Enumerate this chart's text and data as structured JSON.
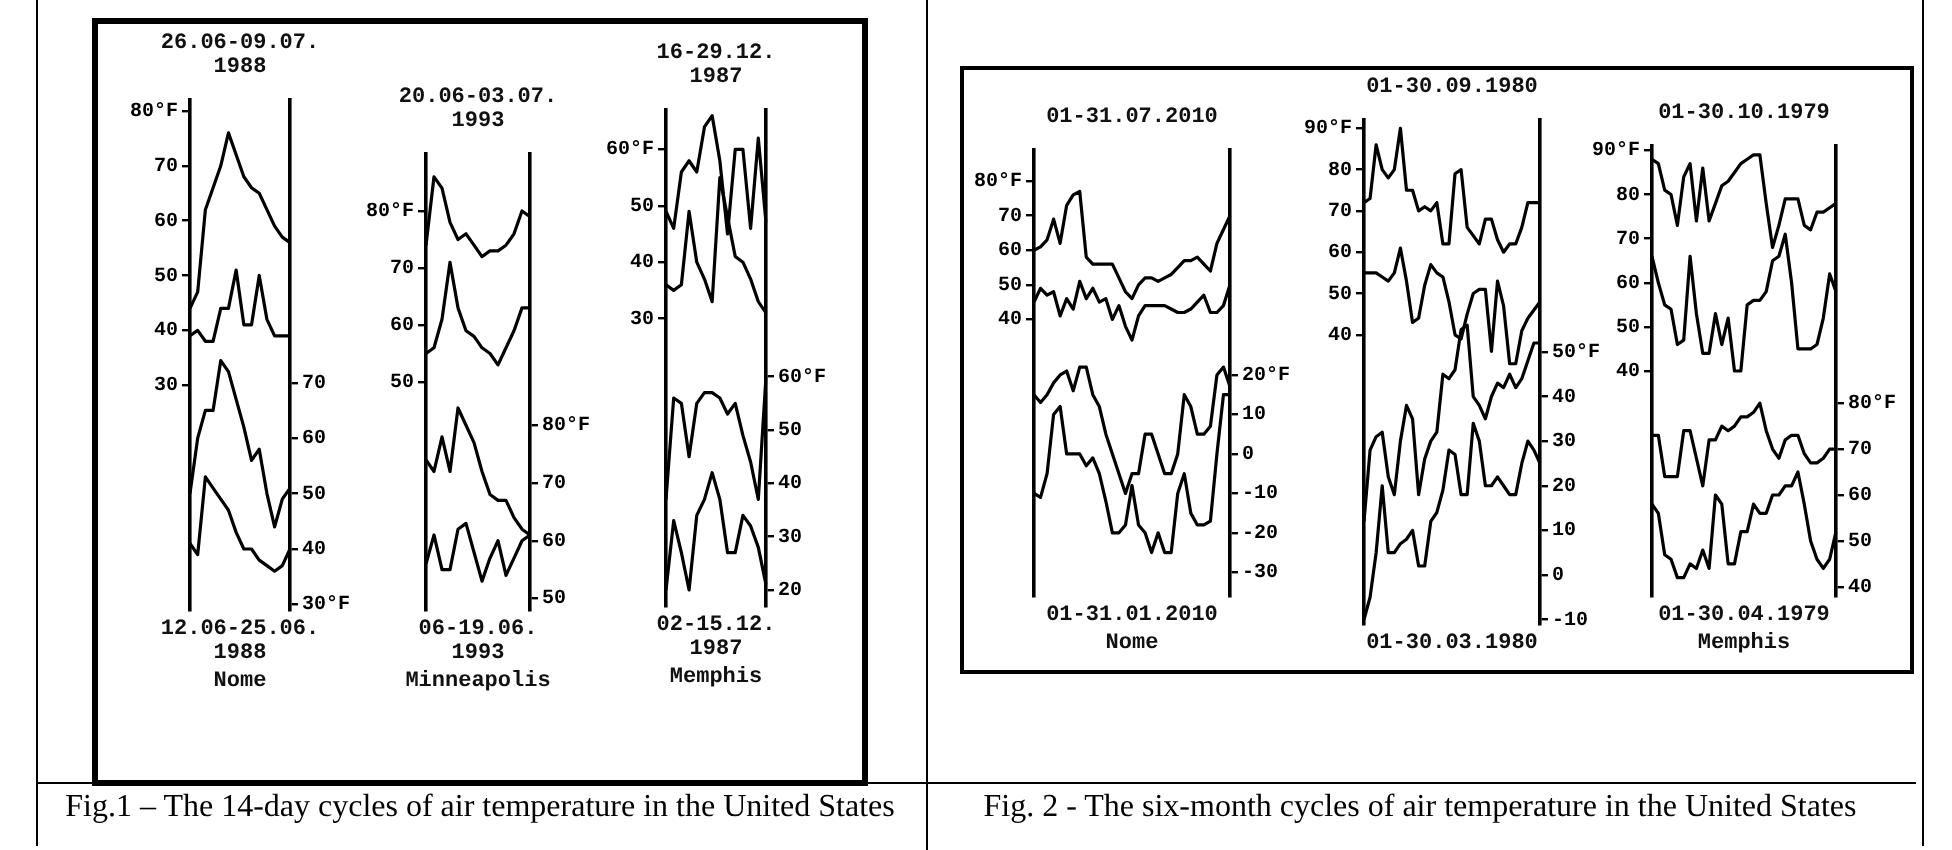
{
  "chart_data": [
    {
      "type": "line",
      "title": "26.06-09.07.\n1988",
      "xlabel": "12.06-25.06.\n1988",
      "annotations": [
        "Nome"
      ],
      "marker": "none",
      "grid": false,
      "legend": false,
      "categories": [
        null,
        null,
        null,
        null,
        null,
        null,
        null,
        null,
        null,
        null,
        null,
        null,
        null,
        null
      ],
      "ylim": [
        -11,
        82
      ],
      "yticks": [
        30,
        40,
        50,
        60,
        70,
        {
          "value": 80,
          "label": "80°F"
        }
      ],
      "y2lim": [
        29,
        121
      ],
      "y2ticks": [
        {
          "value": 30,
          "label": "30°F"
        },
        40,
        50,
        60,
        70
      ],
      "series": [
        {
          "color": "#000000",
          "values": [
            44,
            47,
            62,
            66,
            70,
            76,
            72,
            68,
            66,
            65,
            62,
            59,
            57,
            56
          ]
        },
        {
          "color": "#000000",
          "values": [
            39,
            40,
            38,
            38,
            44,
            44,
            51,
            41,
            41,
            50,
            42,
            39,
            39,
            39
          ]
        },
        {
          "color": "#000000",
          "axis": "y2",
          "values": [
            50,
            60,
            65,
            65,
            74,
            72,
            67,
            62,
            56,
            58,
            50,
            44,
            49,
            51
          ]
        },
        {
          "color": "#000000",
          "axis": "y2",
          "values": [
            41,
            39,
            53,
            51,
            49,
            47,
            43,
            40,
            40,
            38,
            37,
            36,
            37,
            40
          ]
        }
      ]
    },
    {
      "type": "line",
      "title": "20.06-03.07.\n1993",
      "xlabel": "06-19.06.\n1993",
      "annotations": [
        "Minneapolis"
      ],
      "marker": "none",
      "grid": false,
      "legend": false,
      "categories": [
        null,
        null,
        null,
        null,
        null,
        null,
        null,
        null,
        null,
        null,
        null,
        null,
        null,
        null
      ],
      "ylim": [
        10,
        90
      ],
      "yticks": [
        50,
        60,
        70,
        {
          "value": 80,
          "label": "80°F"
        }
      ],
      "y2lim": [
        48,
        127
      ],
      "y2ticks": [
        50,
        60,
        70,
        {
          "value": 80,
          "label": "80°F"
        }
      ],
      "series": [
        {
          "color": "#000000",
          "values": [
            74,
            86,
            84,
            78,
            75,
            76,
            74,
            72,
            73,
            73,
            74,
            76,
            80,
            79
          ]
        },
        {
          "color": "#000000",
          "values": [
            55,
            56,
            61,
            71,
            63,
            59,
            58,
            56,
            55,
            53,
            56,
            59,
            63,
            63
          ]
        },
        {
          "color": "#000000",
          "axis": "y2",
          "values": [
            74,
            72,
            78,
            72,
            83,
            80,
            77,
            72,
            68,
            67,
            67,
            64,
            62,
            61
          ]
        },
        {
          "color": "#000000",
          "axis": "y2",
          "values": [
            56,
            61,
            55,
            55,
            62,
            63,
            58,
            53,
            57,
            60,
            54,
            57,
            60,
            61
          ]
        }
      ]
    },
    {
      "type": "line",
      "title": "16-29.12.\n1987",
      "xlabel": "02-15.12.\n1987",
      "annotations": [
        "Memphis"
      ],
      "marker": "none",
      "grid": false,
      "legend": false,
      "categories": [
        null,
        null,
        null,
        null,
        null,
        null,
        null,
        null,
        null,
        null,
        null,
        null,
        null,
        null
      ],
      "ylim": [
        -21,
        67
      ],
      "yticks": [
        30,
        40,
        50,
        {
          "value": 60,
          "label": "60°F"
        }
      ],
      "y2lim": [
        17,
        110
      ],
      "y2ticks": [
        20,
        30,
        40,
        50,
        {
          "value": 60,
          "label": "60°F"
        }
      ],
      "series": [
        {
          "color": "#000000",
          "values": [
            49,
            46,
            56,
            58,
            56,
            64,
            66,
            58,
            45,
            60,
            60,
            46,
            62,
            47
          ]
        },
        {
          "color": "#000000",
          "values": [
            36,
            35,
            36,
            49,
            40,
            37,
            33,
            55,
            48,
            41,
            40,
            37,
            33,
            31
          ]
        },
        {
          "color": "#000000",
          "axis": "y2",
          "values": [
            37,
            56,
            55,
            45,
            55,
            57,
            57,
            56,
            53,
            55,
            49,
            44,
            37,
            60
          ]
        },
        {
          "color": "#000000",
          "axis": "y2",
          "values": [
            20,
            33,
            27,
            20,
            34,
            37,
            42,
            37,
            27,
            27,
            34,
            32,
            28,
            21
          ]
        }
      ]
    },
    {
      "type": "line",
      "title": "01-31.07.2010",
      "xlabel": "01-31.01.2010",
      "annotations": [
        "Nome"
      ],
      "marker": "none",
      "grid": false,
      "legend": false,
      "categories": [
        null,
        null,
        null,
        null,
        null,
        null,
        null,
        null,
        null,
        null,
        null,
        null,
        null,
        null,
        null,
        null,
        null,
        null,
        null,
        null,
        null,
        null,
        null,
        null,
        null,
        null,
        null,
        null,
        null,
        null,
        null
      ],
      "ylim": [
        -40,
        89
      ],
      "yticks": [
        40,
        50,
        60,
        70,
        {
          "value": 80,
          "label": "80°F"
        }
      ],
      "y2lim": [
        -36,
        77
      ],
      "y2ticks": [
        -30,
        -20,
        -10,
        0,
        10,
        {
          "value": 20,
          "label": "20°F"
        }
      ],
      "series": [
        {
          "color": "#000000",
          "values": [
            60,
            61,
            63,
            69,
            62,
            73,
            76,
            77,
            58,
            56,
            56,
            56,
            56,
            52,
            48,
            46,
            50,
            52,
            52,
            51,
            52,
            53,
            55,
            57,
            57,
            58,
            56,
            54,
            62,
            66,
            70
          ]
        },
        {
          "color": "#000000",
          "values": [
            45,
            49,
            47,
            48,
            41,
            46,
            43,
            51,
            46,
            49,
            45,
            46,
            40,
            44,
            38,
            34,
            41,
            44,
            44,
            44,
            44,
            43,
            42,
            42,
            43,
            45,
            47,
            42,
            42,
            44,
            50
          ]
        },
        {
          "color": "#000000",
          "axis": "y2",
          "values": [
            15,
            13,
            15,
            18,
            20,
            21,
            16,
            22,
            22,
            15,
            12,
            5,
            0,
            -5,
            -10,
            -5,
            -5,
            5,
            5,
            0,
            -5,
            -5,
            0,
            15,
            12,
            5,
            5,
            7,
            20,
            22,
            17
          ]
        },
        {
          "color": "#000000",
          "axis": "y2",
          "values": [
            -10,
            -11,
            -5,
            10,
            12,
            0,
            0,
            0,
            -3,
            -1,
            -5,
            -12,
            -20,
            -20,
            -18,
            -8,
            -18,
            -20,
            -25,
            -20,
            -25,
            -25,
            -10,
            -5,
            -15,
            -18,
            -18,
            -17,
            0,
            15,
            15
          ]
        }
      ]
    },
    {
      "type": "line",
      "title": "01-30.09.1980",
      "xlabel": "01-30.03.1980",
      "marker": "none",
      "grid": false,
      "legend": false,
      "categories": [
        null,
        null,
        null,
        null,
        null,
        null,
        null,
        null,
        null,
        null,
        null,
        null,
        null,
        null,
        null,
        null,
        null,
        null,
        null,
        null,
        null,
        null,
        null,
        null,
        null,
        null,
        null,
        null,
        null,
        null
      ],
      "ylim": [
        -30,
        92
      ],
      "yticks": [
        40,
        50,
        60,
        70,
        80,
        {
          "value": 90,
          "label": "90°F"
        }
      ],
      "y2lim": [
        -11,
        102
      ],
      "y2ticks": [
        -10,
        0,
        10,
        20,
        30,
        40,
        {
          "value": 50,
          "label": "50°F"
        }
      ],
      "series": [
        {
          "color": "#000000",
          "values": [
            72,
            73,
            86,
            80,
            78,
            80,
            90,
            75,
            75,
            70,
            71,
            70,
            72,
            62,
            62,
            79,
            80,
            66,
            64,
            62,
            68,
            68,
            63,
            60,
            62,
            62,
            66,
            72,
            72,
            72
          ]
        },
        {
          "color": "#000000",
          "values": [
            55,
            55,
            55,
            54,
            53,
            55,
            61,
            53,
            43,
            44,
            52,
            57,
            55,
            54,
            48,
            40,
            39,
            45,
            50,
            51,
            51,
            36,
            53,
            47,
            33,
            33,
            41,
            44,
            46,
            48
          ]
        },
        {
          "color": "#000000",
          "axis": "y2",
          "values": [
            12,
            28,
            31,
            32,
            22,
            18,
            30,
            38,
            35,
            18,
            26,
            30,
            32,
            45,
            44,
            46,
            55,
            56,
            40,
            38,
            35,
            40,
            43,
            42,
            45,
            42,
            44,
            48,
            52,
            52
          ]
        },
        {
          "color": "#000000",
          "axis": "y2",
          "values": [
            -10,
            -5,
            5,
            20,
            5,
            5,
            7,
            8,
            10,
            2,
            2,
            12,
            14,
            19,
            28,
            27,
            18,
            18,
            34,
            30,
            20,
            20,
            22,
            20,
            18,
            18,
            25,
            30,
            28,
            25
          ]
        }
      ]
    },
    {
      "type": "line",
      "title": "01-30.10.1979",
      "xlabel": "01-30.04.1979",
      "annotations": [
        "Memphis"
      ],
      "marker": "none",
      "grid": false,
      "legend": false,
      "categories": [
        null,
        null,
        null,
        null,
        null,
        null,
        null,
        null,
        null,
        null,
        null,
        null,
        null,
        null,
        null,
        null,
        null,
        null,
        null,
        null,
        null,
        null,
        null,
        null,
        null,
        null,
        null,
        null,
        null,
        null
      ],
      "ylim": [
        -11,
        91
      ],
      "yticks": [
        40,
        50,
        60,
        70,
        80,
        {
          "value": 90,
          "label": "90°F"
        }
      ],
      "y2lim": [
        38,
        136
      ],
      "y2ticks": [
        40,
        50,
        60,
        70,
        {
          "value": 80,
          "label": "80°F"
        }
      ],
      "series": [
        {
          "color": "#000000",
          "values": [
            88,
            87,
            81,
            80,
            73,
            84,
            87,
            74,
            86,
            74,
            78,
            82,
            83,
            85,
            87,
            88,
            89,
            89,
            78,
            68,
            73,
            79,
            79,
            79,
            73,
            72,
            76,
            76,
            77,
            78
          ]
        },
        {
          "color": "#000000",
          "values": [
            66,
            60,
            55,
            54,
            46,
            47,
            66,
            53,
            44,
            44,
            53,
            46,
            52,
            40,
            40,
            55,
            56,
            56,
            58,
            65,
            66,
            71,
            60,
            45,
            45,
            45,
            46,
            52,
            62,
            58
          ]
        },
        {
          "color": "#000000",
          "axis": "y2",
          "values": [
            73,
            73,
            64,
            64,
            64,
            74,
            74,
            68,
            62,
            72,
            72,
            75,
            74,
            75,
            77,
            77,
            78,
            80,
            74,
            70,
            68,
            72,
            73,
            73,
            69,
            67,
            67,
            68,
            70,
            70
          ]
        },
        {
          "color": "#000000",
          "axis": "y2",
          "values": [
            58,
            56,
            47,
            46,
            42,
            42,
            45,
            44,
            48,
            44,
            60,
            58,
            45,
            45,
            52,
            52,
            58,
            56,
            56,
            60,
            60,
            62,
            62,
            65,
            58,
            50,
            46,
            44,
            46,
            52
          ]
        }
      ]
    },
    {
      "type": "other",
      "title": "Fig.1 – The 14-day cycles of air temperature in the United States"
    },
    {
      "type": "other",
      "title": "Fig. 2 - The six-month cycles of air temperature  in the United States"
    }
  ]
}
